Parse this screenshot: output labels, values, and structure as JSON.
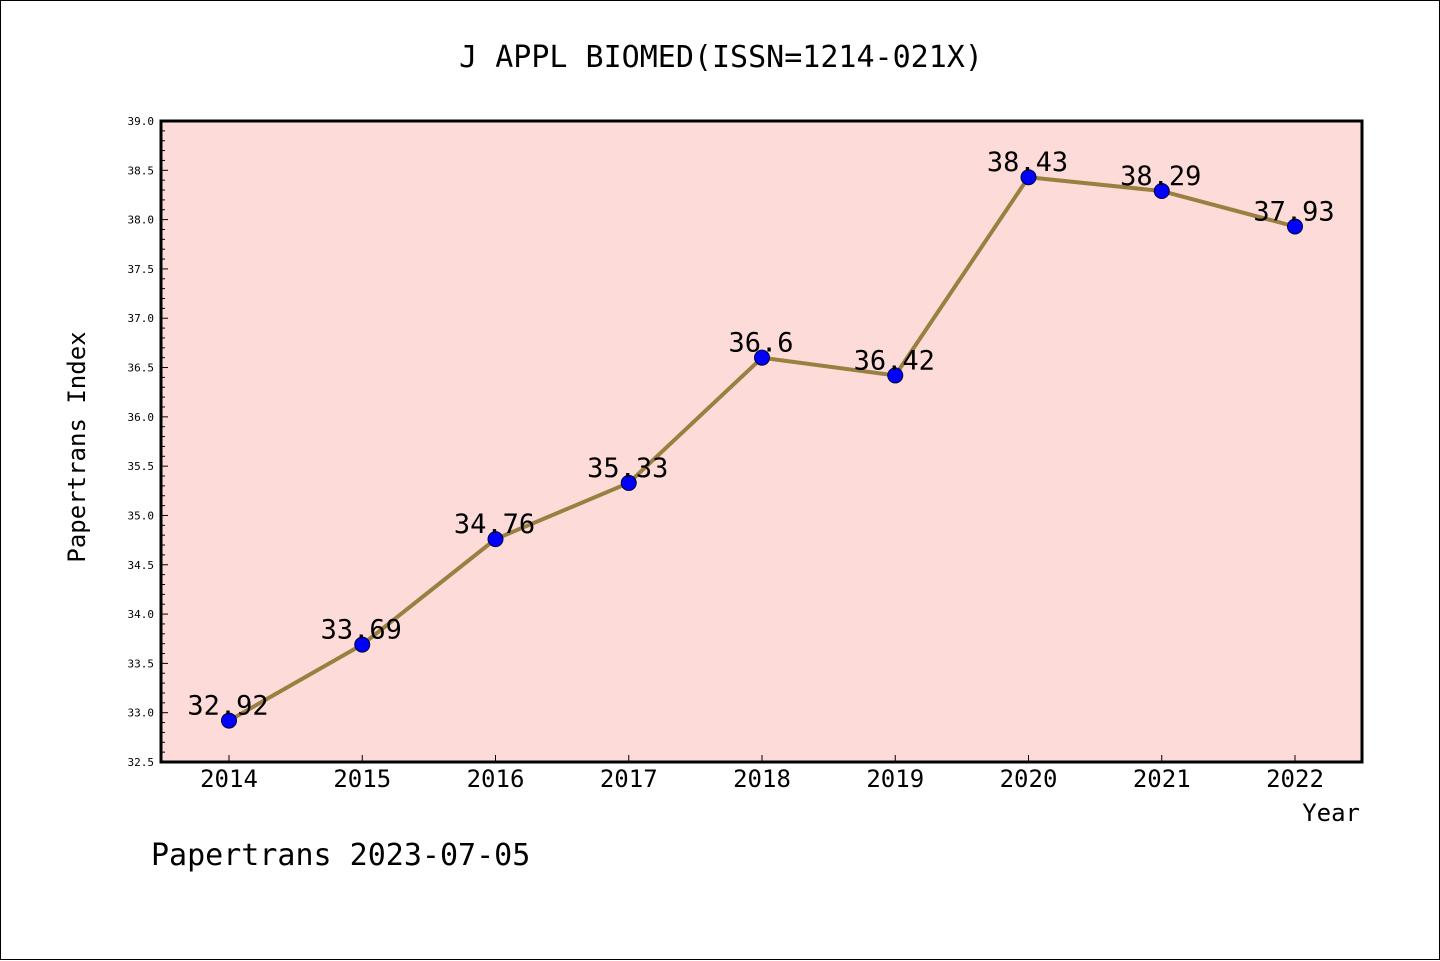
{
  "colors": {
    "plot_background": "#fddbd9",
    "line": "#9a8040",
    "marker": "#0000ff",
    "axis": "#000000"
  },
  "footer": "Papertrans 2023-07-05",
  "chart_data": {
    "type": "line",
    "title": "J APPL BIOMED(ISSN=1214-021X)",
    "xlabel": "Year",
    "ylabel": "Papertrans Index",
    "categories": [
      "2014",
      "2015",
      "2016",
      "2017",
      "2018",
      "2019",
      "2020",
      "2021",
      "2022"
    ],
    "series": [
      {
        "values": [
          32.92,
          33.69,
          34.76,
          35.33,
          36.6,
          36.42,
          38.43,
          38.29,
          37.93
        ],
        "data_labels": [
          "32.92",
          "33.69",
          "34.76",
          "35.33",
          "36.6",
          "36.42",
          "38.43",
          "38.29",
          "37.93"
        ]
      }
    ],
    "ylim": [
      32.5,
      39.0
    ],
    "yticks": [
      "32.5",
      "33.0",
      "33.5",
      "34.0",
      "34.5",
      "35.0",
      "35.5",
      "36.0",
      "36.5",
      "37.0",
      "37.5",
      "38.0",
      "38.5",
      "39.0"
    ],
    "y_minor_step": 0.1,
    "grid": false,
    "legend": "none",
    "marker": "circle"
  }
}
